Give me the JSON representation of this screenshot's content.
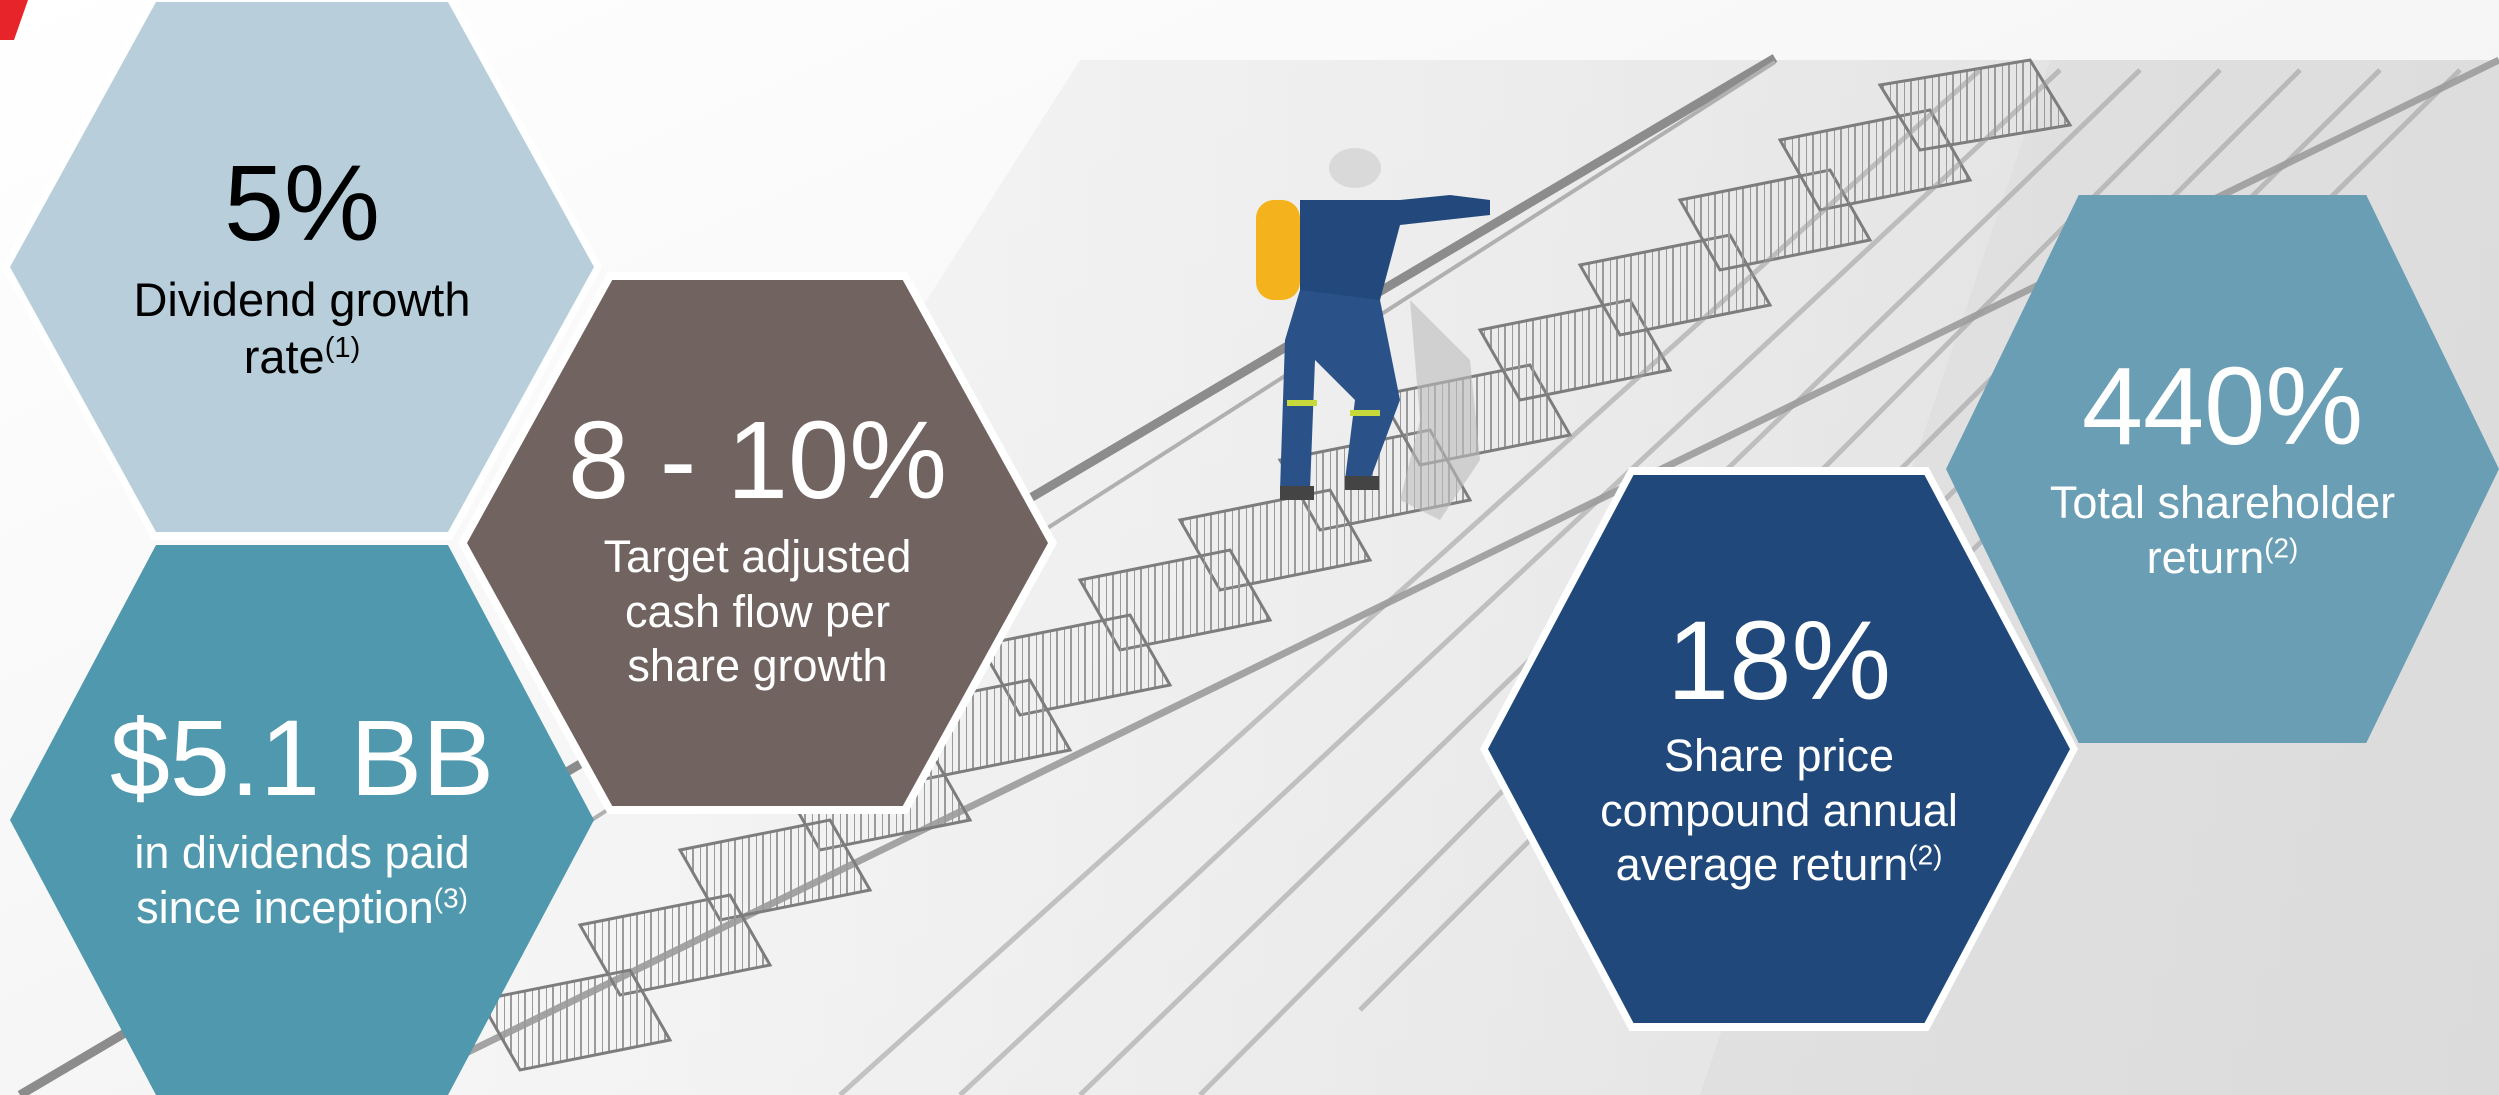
{
  "slide": {
    "accent_color": "#e8242b",
    "photo_description_icon": "worker-climbing-stairs-image"
  },
  "stats": {
    "dividend_growth": {
      "value": "5%",
      "line1": "Dividend growth",
      "line2": "rate",
      "footnote": "(1)",
      "color": "#b8cfdb"
    },
    "cash_flow": {
      "value": "8 - 10%",
      "line1": "Target adjusted",
      "line2": "cash flow per",
      "line3": "share growth",
      "color": "#706360"
    },
    "dividends_paid": {
      "value": "$5.1 BB",
      "line1": "in dividends paid",
      "line2": "since inception",
      "footnote": "(3)",
      "color": "#4f98ae"
    },
    "share_price": {
      "value": "18%",
      "line1": "Share price",
      "line2": "compound annual",
      "line3": "average return",
      "footnote": "(2)",
      "color": "#20487a"
    },
    "tsr": {
      "value": "440%",
      "line1": "Total shareholder",
      "line2": "return",
      "footnote": "(2)",
      "color": "#6a9eb5"
    }
  }
}
